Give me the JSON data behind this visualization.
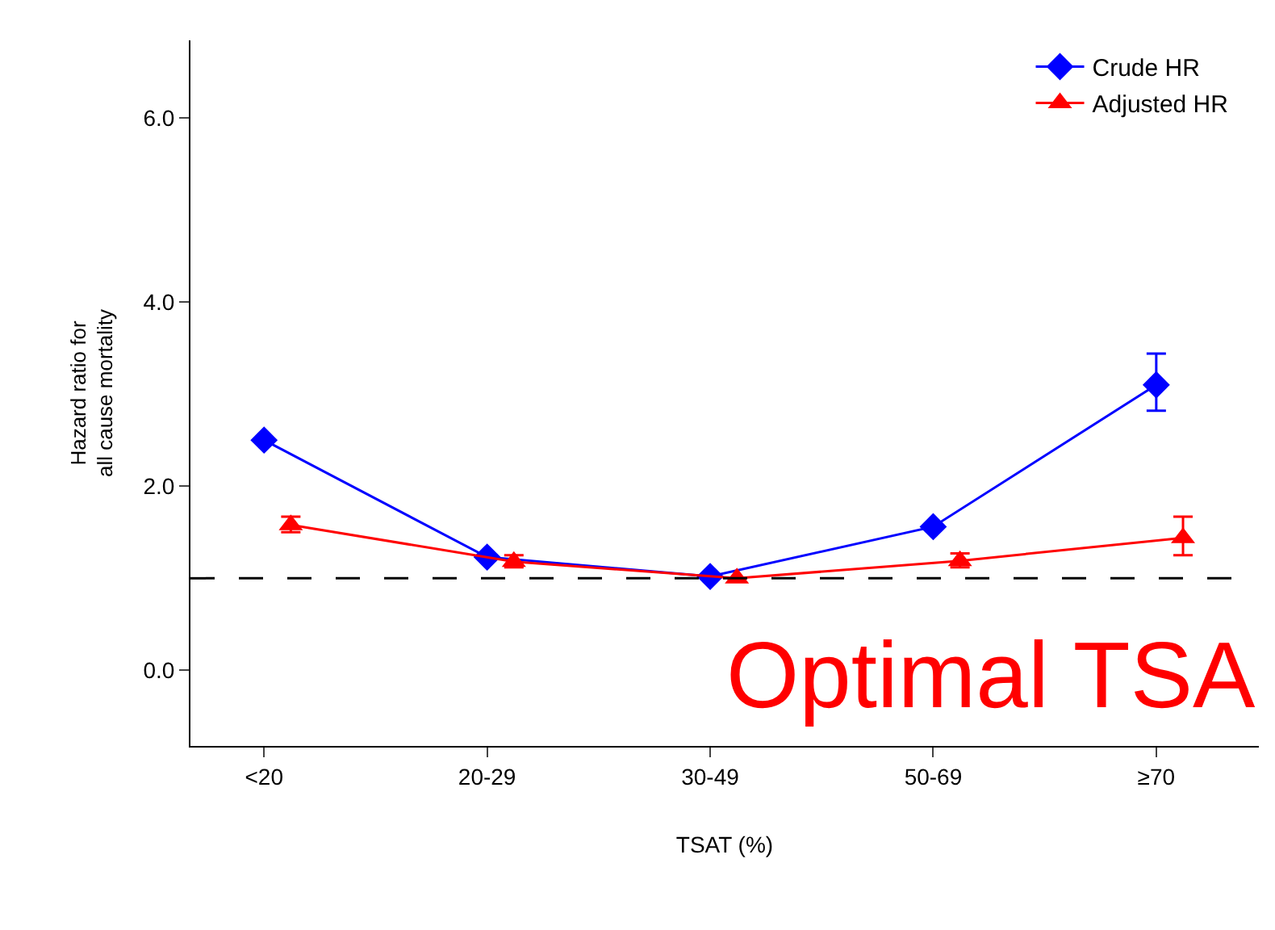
{
  "chart_data": {
    "type": "line",
    "xlabel": "TSAT (%)",
    "ylabel": "Hazard ratio for\nall cause mortality",
    "categories": [
      "<20",
      "20-29",
      "30-49",
      "50-69",
      "≥70"
    ],
    "series": [
      {
        "name": "Crude HR",
        "color": "#0000ff",
        "marker": "diamond",
        "values": [
          2.5,
          1.23,
          1.02,
          1.56,
          3.1
        ],
        "errors": [
          null,
          null,
          null,
          null,
          [
            2.82,
            3.44
          ]
        ]
      },
      {
        "name": "Adjusted HR",
        "color": "#ff0000",
        "marker": "triangle",
        "values": [
          1.58,
          1.18,
          1.0,
          1.19,
          1.44
        ],
        "errors": [
          [
            1.5,
            1.67
          ],
          [
            1.12,
            1.25
          ],
          null,
          [
            1.12,
            1.27
          ],
          [
            1.25,
            1.67
          ]
        ]
      }
    ],
    "ylim": [
      -0.82,
      6.84
    ],
    "yticks": [
      {
        "value": 0,
        "label": "0.0"
      },
      {
        "value": 2,
        "label": "2.0"
      },
      {
        "value": 4,
        "label": "4.0"
      },
      {
        "value": 6,
        "label": "6.0"
      }
    ],
    "ref_lines": [
      {
        "axis": "y",
        "value": 1.0,
        "color": "#000000",
        "line_style": "dashed"
      }
    ],
    "annotations": [
      "Optimal TSA"
    ],
    "legend": "top right",
    "line_style": "solid"
  }
}
